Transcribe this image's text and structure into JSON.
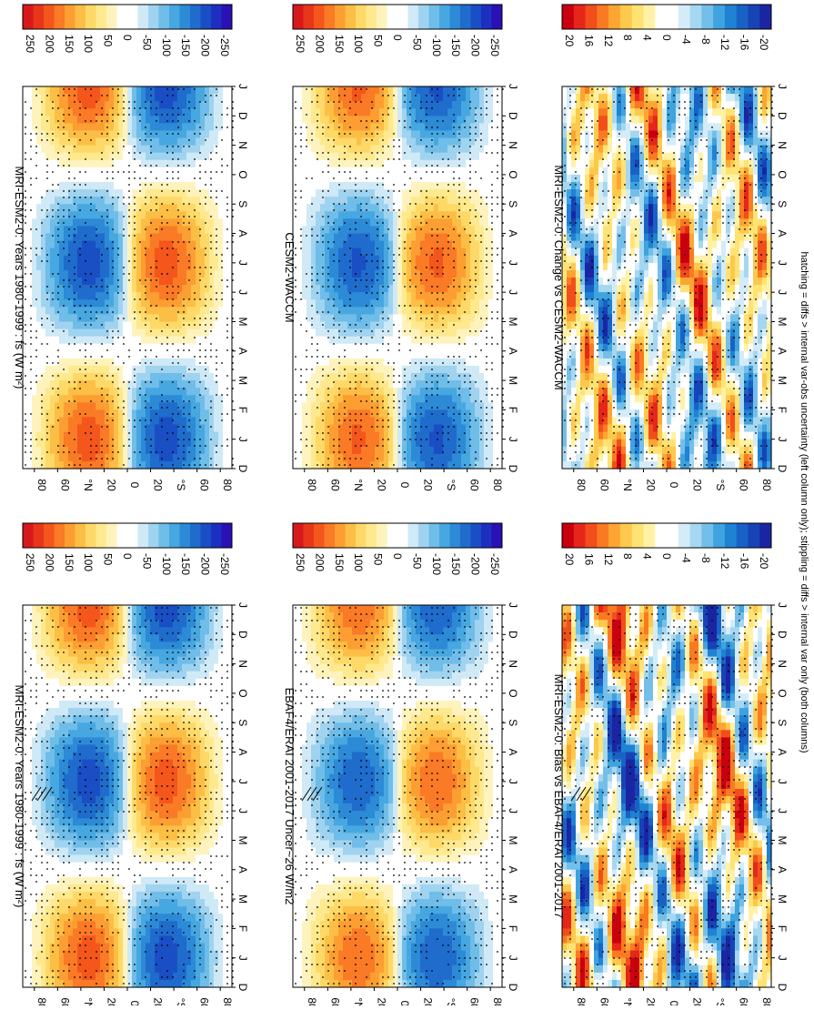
{
  "figure": {
    "footnote": "hatching = diffs > internal var-obs uncertainty (left column only); stippling = diffs > internal var only (both columns)"
  },
  "palettes": {
    "mean": [
      "#d7191c",
      "#e8361a",
      "#f4561b",
      "#fa7a26",
      "#fc9e32",
      "#fdbe45",
      "#fed968",
      "#fee98e",
      "#fff3bd",
      "#ffffff",
      "#ffffff",
      "#cfe9f7",
      "#9fd3f0",
      "#6fbde8",
      "#47a7e0",
      "#2c8ad7",
      "#1f6ccc",
      "#1a4ec4",
      "#1d2fc0",
      "#2a10b5"
    ],
    "diff": [
      "#c9000f",
      "#e6261a",
      "#f24e1c",
      "#f97a22",
      "#fca533",
      "#fdc84c",
      "#fee374",
      "#fff2a6",
      "#ffffff",
      "#ffffff",
      "#d4ecf8",
      "#a6d7f1",
      "#74bfe9",
      "#3ea3de",
      "#1f82d2",
      "#1962c5",
      "#1743b6",
      "#1b25a2"
    ]
  },
  "chart_data": [
    {
      "type": "heatmap",
      "panel": "left-top",
      "title": "MRI-ESM2-0: Years 1980-1999 : fs (W m²)",
      "x_ticks": [
        "D",
        "J",
        "F",
        "M",
        "A",
        "M",
        "J",
        "J",
        "A",
        "S",
        "O",
        "N",
        "D",
        "J"
      ],
      "y_ticks": [
        "80",
        "60",
        "°N",
        "20",
        "0",
        "20",
        "°S",
        "60",
        "80"
      ],
      "xlim": [
        "D",
        "J"
      ],
      "ylim": [
        90,
        -90
      ],
      "colorbar": {
        "ticks": [
          "250",
          "200",
          "150",
          "100",
          "50",
          "0",
          "-50",
          "-100",
          "-150",
          "-200",
          "-250"
        ],
        "range": [
          275,
          -275
        ],
        "palette": "mean"
      },
      "amplitude": 250,
      "noise": 0,
      "hatching": true,
      "stippling": true
    },
    {
      "type": "heatmap",
      "panel": "right-top",
      "title": "MRI-ESM2-0: Years 1980-1999 : fs (W m²)",
      "x_ticks": [
        "D",
        "J",
        "F",
        "M",
        "A",
        "M",
        "J",
        "J",
        "A",
        "S",
        "O",
        "N",
        "D",
        "J"
      ],
      "y_ticks": [
        "80",
        "60",
        "°N",
        "20",
        "0",
        "20",
        "°S",
        "60",
        "80"
      ],
      "xlim": [
        "D",
        "J"
      ],
      "ylim": [
        90,
        -90
      ],
      "colorbar": {
        "ticks": [
          "250",
          "200",
          "150",
          "100",
          "50",
          "0",
          "-50",
          "-100",
          "-150",
          "-200",
          "-250"
        ],
        "range": [
          275,
          -275
        ],
        "palette": "mean"
      },
      "amplitude": 250,
      "noise": 0,
      "hatching": false,
      "stippling": true
    },
    {
      "type": "heatmap",
      "panel": "left-middle",
      "title": "EBAF4/ERAI 2001-2017 Uncer~26 W/m2",
      "x_ticks": [
        "D",
        "J",
        "F",
        "M",
        "A",
        "M",
        "J",
        "J",
        "A",
        "S",
        "O",
        "N",
        "D",
        "J"
      ],
      "y_ticks": [
        "80",
        "60",
        "°N",
        "20",
        "0",
        "20",
        "°S",
        "60",
        "80"
      ],
      "xlim": [
        "D",
        "J"
      ],
      "ylim": [
        90,
        -90
      ],
      "colorbar": {
        "ticks": [
          "250",
          "200",
          "150",
          "100",
          "50",
          "0",
          "-50",
          "-100",
          "-150",
          "-200",
          "-250"
        ],
        "range": [
          275,
          -275
        ],
        "palette": "mean"
      },
      "amplitude": 230,
      "noise": 0,
      "hatching": true,
      "stippling": true
    },
    {
      "type": "heatmap",
      "panel": "right-middle",
      "title": "CESM2-WACCM",
      "x_ticks": [
        "D",
        "J",
        "F",
        "M",
        "A",
        "M",
        "J",
        "J",
        "A",
        "S",
        "O",
        "N",
        "D",
        "J"
      ],
      "y_ticks": [
        "80",
        "60",
        "°N",
        "20",
        "0",
        "20",
        "°S",
        "60",
        "80"
      ],
      "xlim": [
        "D",
        "J"
      ],
      "ylim": [
        90,
        -90
      ],
      "colorbar": {
        "ticks": [
          "250",
          "200",
          "150",
          "100",
          "50",
          "0",
          "-50",
          "-100",
          "-150",
          "-200",
          "-250"
        ],
        "range": [
          275,
          -275
        ],
        "palette": "mean"
      },
      "amplitude": 240,
      "noise": 0,
      "hatching": false,
      "stippling": true
    },
    {
      "type": "heatmap",
      "panel": "left-bottom",
      "title": "MRI-ESM2-0: Bias vs EBAF4/ERAI 2001-2017",
      "x_ticks": [
        "D",
        "J",
        "F",
        "M",
        "A",
        "M",
        "J",
        "J",
        "A",
        "S",
        "O",
        "N",
        "D",
        "J"
      ],
      "y_ticks": [
        "80",
        "60",
        "°N",
        "20",
        "0",
        "20",
        "°S",
        "60",
        "80"
      ],
      "xlim": [
        "D",
        "J"
      ],
      "ylim": [
        90,
        -90
      ],
      "colorbar": {
        "ticks": [
          "20",
          "16",
          "12",
          "8",
          "4",
          "0",
          "-4",
          "-8",
          "-12",
          "-16",
          "-20"
        ],
        "range": [
          22,
          -22
        ],
        "palette": "diff"
      },
      "amplitude": 20,
      "noise": 1,
      "hatching": true,
      "stippling": true
    },
    {
      "type": "heatmap",
      "panel": "right-bottom",
      "title": "MRI-ESM2-0: Change vs CESM2-WACCM",
      "x_ticks": [
        "D",
        "J",
        "F",
        "M",
        "A",
        "M",
        "J",
        "J",
        "A",
        "S",
        "O",
        "N",
        "D",
        "J"
      ],
      "y_ticks": [
        "80",
        "60",
        "°N",
        "20",
        "0",
        "20",
        "°S",
        "60",
        "80"
      ],
      "xlim": [
        "D",
        "J"
      ],
      "ylim": [
        90,
        -90
      ],
      "colorbar": {
        "ticks": [
          "20",
          "16",
          "12",
          "8",
          "4",
          "0",
          "-4",
          "-8",
          "-12",
          "-16",
          "-20"
        ],
        "range": [
          22,
          -22
        ],
        "palette": "diff"
      },
      "amplitude": 18,
      "noise": 2,
      "hatching": false,
      "stippling": true
    }
  ]
}
